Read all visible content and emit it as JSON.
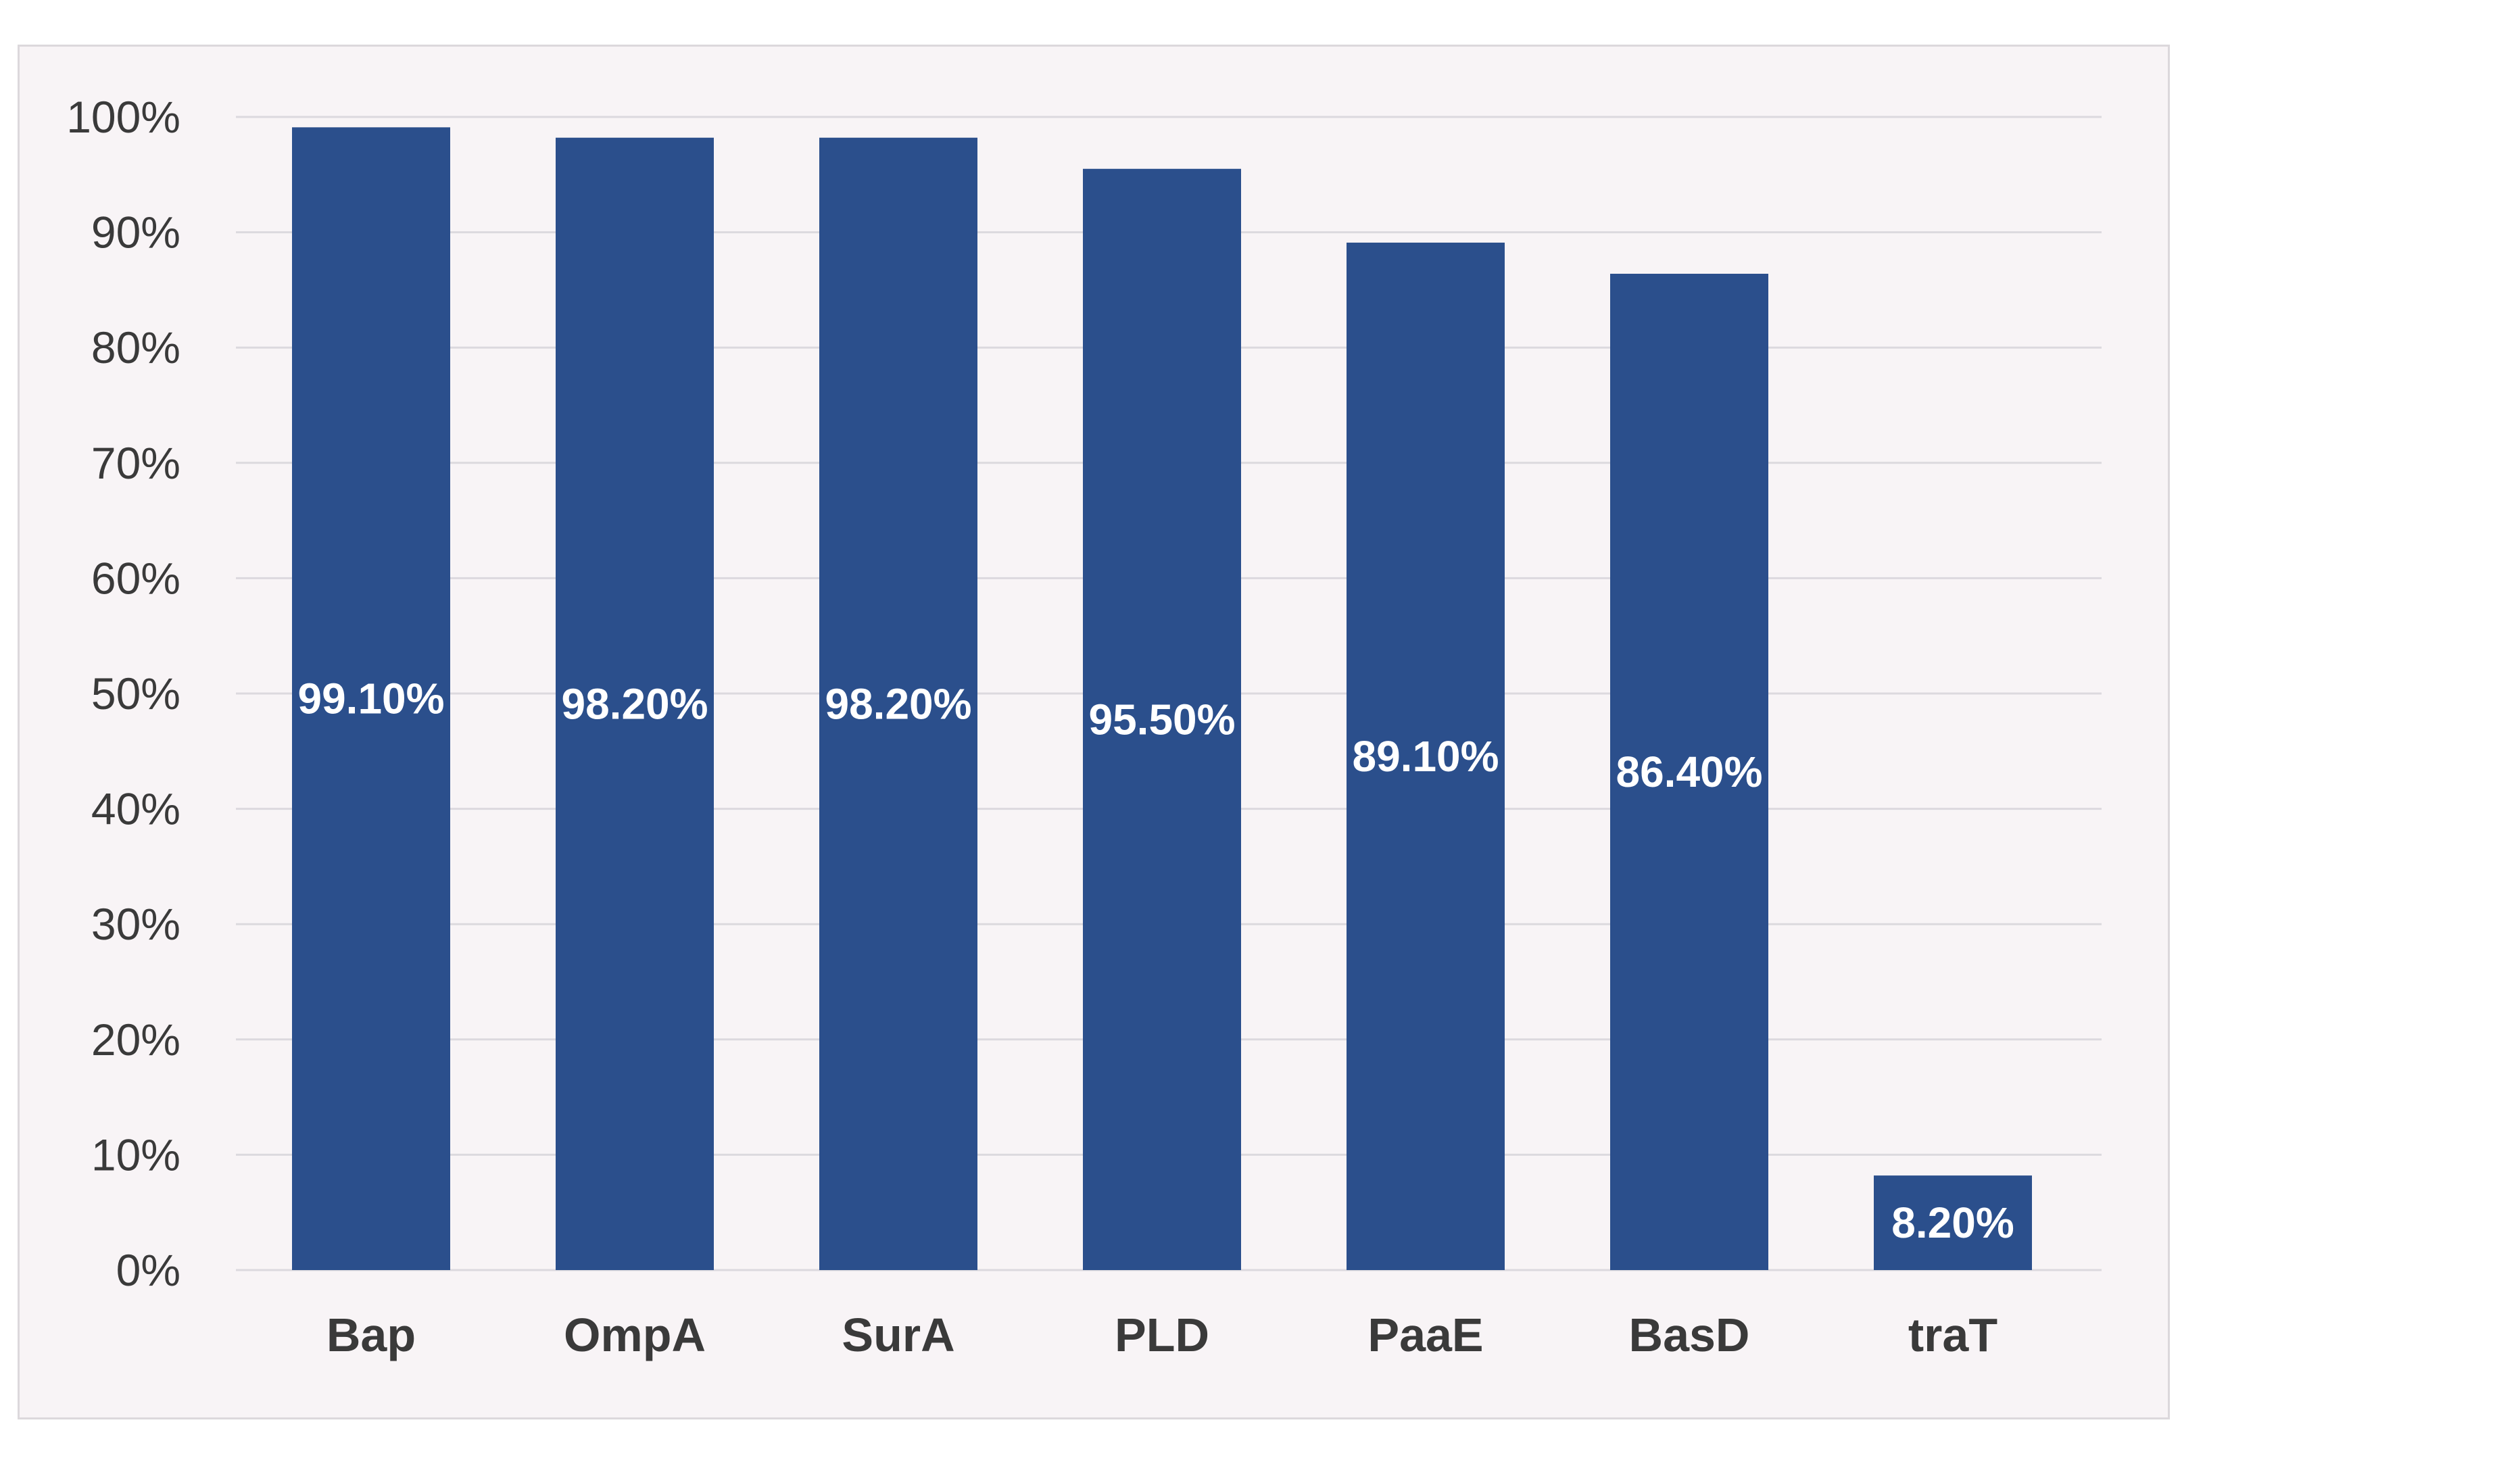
{
  "chart_data": {
    "type": "bar",
    "categories": [
      "Bap",
      "OmpA",
      "SurA",
      "PLD",
      "PaaE",
      "BasD",
      "traT"
    ],
    "values": [
      99.1,
      98.2,
      98.2,
      95.5,
      89.1,
      86.4,
      8.2
    ],
    "data_labels": [
      "99.10%",
      "98.20%",
      "98.20%",
      "95.50%",
      "89.10%",
      "86.40%",
      "8.20%"
    ],
    "ylim": [
      0,
      100
    ],
    "yticks": [
      0,
      10,
      20,
      30,
      40,
      50,
      60,
      70,
      80,
      90,
      100
    ],
    "ytick_labels": [
      "0%",
      "10%",
      "20%",
      "30%",
      "40%",
      "50%",
      "60%",
      "70%",
      "80%",
      "90%",
      "100%"
    ],
    "grid": true,
    "legend": "none",
    "bar_color": "#2b4f8c",
    "background_color": "#f8f4f6"
  }
}
